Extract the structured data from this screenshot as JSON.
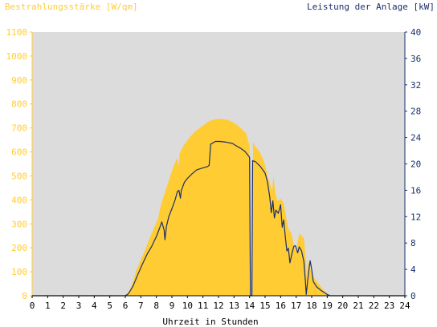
{
  "chart_data": {
    "type": "area+line",
    "left_axis_label": "Bestrahlungsstärke [W/qm]",
    "right_axis_label": "Leistung der Anlage [kW]",
    "xlabel": "Uhrzeit in Stunden",
    "x_ticks": [
      "0",
      "1",
      "2",
      "3",
      "4",
      "5",
      "6",
      "7",
      "8",
      "9",
      "10",
      "11",
      "12",
      "13",
      "14",
      "15",
      "16",
      "17",
      "18",
      "19",
      "20",
      "21",
      "22",
      "23",
      "24"
    ],
    "y_left_ticks": [
      "0",
      "100",
      "200",
      "300",
      "400",
      "500",
      "600",
      "700",
      "800",
      "900",
      "1000",
      "1100"
    ],
    "y_right_ticks": [
      "0",
      "4",
      "8",
      "12",
      "16",
      "20",
      "24",
      "28",
      "32",
      "36",
      "40"
    ],
    "xlim": [
      0,
      24
    ],
    "ylim_left": [
      0,
      1100
    ],
    "ylim_right": [
      0,
      40
    ],
    "grid": false,
    "colors": {
      "plot_background": "#dcdcdc",
      "irradiance_fill": "#ffcc33",
      "power_line": "#1a2f6b",
      "left_axis_text": "#ffcc33",
      "right_axis_text": "#1a2f6b",
      "axis_text": "#000000"
    },
    "series": [
      {
        "key": "irradiance",
        "axis": "left",
        "style": "area",
        "points": [
          [
            0,
            0
          ],
          [
            5.9,
            0
          ],
          [
            6.1,
            8
          ],
          [
            6.3,
            25
          ],
          [
            6.5,
            60
          ],
          [
            6.7,
            105
          ],
          [
            7.0,
            150
          ],
          [
            7.3,
            195
          ],
          [
            7.6,
            245
          ],
          [
            7.9,
            290
          ],
          [
            8.1,
            320
          ],
          [
            8.3,
            380
          ],
          [
            8.5,
            420
          ],
          [
            8.7,
            460
          ],
          [
            8.9,
            500
          ],
          [
            9.0,
            520
          ],
          [
            9.2,
            555
          ],
          [
            9.35,
            575
          ],
          [
            9.45,
            540
          ],
          [
            9.5,
            595
          ],
          [
            9.7,
            620
          ],
          [
            9.9,
            640
          ],
          [
            10.2,
            665
          ],
          [
            10.5,
            685
          ],
          [
            10.8,
            700
          ],
          [
            11.1,
            715
          ],
          [
            11.4,
            728
          ],
          [
            11.7,
            735
          ],
          [
            12.0,
            738
          ],
          [
            12.3,
            737
          ],
          [
            12.6,
            733
          ],
          [
            12.9,
            725
          ],
          [
            13.2,
            712
          ],
          [
            13.5,
            695
          ],
          [
            13.8,
            675
          ],
          [
            14.0,
            625
          ],
          [
            14.04,
            0
          ],
          [
            14.2,
            0
          ],
          [
            14.22,
            640
          ],
          [
            14.4,
            620
          ],
          [
            14.6,
            605
          ],
          [
            14.8,
            580
          ],
          [
            15.0,
            545
          ],
          [
            15.2,
            490
          ],
          [
            15.3,
            470
          ],
          [
            15.45,
            440
          ],
          [
            15.55,
            500
          ],
          [
            15.65,
            430
          ],
          [
            15.8,
            395
          ],
          [
            16.0,
            405
          ],
          [
            16.2,
            385
          ],
          [
            16.35,
            330
          ],
          [
            16.5,
            280
          ],
          [
            16.7,
            260
          ],
          [
            16.85,
            205
          ],
          [
            17.0,
            185
          ],
          [
            17.2,
            260
          ],
          [
            17.5,
            240
          ],
          [
            17.65,
            130
          ],
          [
            17.7,
            50
          ],
          [
            17.75,
            150
          ],
          [
            17.85,
            120
          ],
          [
            18.0,
            95
          ],
          [
            18.2,
            70
          ],
          [
            18.5,
            45
          ],
          [
            18.8,
            20
          ],
          [
            19.0,
            8
          ],
          [
            19.2,
            0
          ],
          [
            24,
            0
          ]
        ]
      },
      {
        "key": "power",
        "axis": "right",
        "style": "line",
        "points": [
          [
            0,
            0
          ],
          [
            6.0,
            0
          ],
          [
            6.2,
            0.3
          ],
          [
            6.5,
            1.5
          ],
          [
            6.8,
            3.2
          ],
          [
            7.1,
            4.8
          ],
          [
            7.4,
            6.3
          ],
          [
            7.7,
            7.5
          ],
          [
            8.0,
            9.0
          ],
          [
            8.2,
            10.2
          ],
          [
            8.35,
            11.2
          ],
          [
            8.5,
            10.0
          ],
          [
            8.55,
            8.5
          ],
          [
            8.65,
            10.5
          ],
          [
            8.8,
            12.0
          ],
          [
            9.0,
            13.2
          ],
          [
            9.2,
            14.5
          ],
          [
            9.35,
            15.8
          ],
          [
            9.45,
            16.0
          ],
          [
            9.55,
            14.8
          ],
          [
            9.6,
            15.9
          ],
          [
            9.8,
            17.2
          ],
          [
            10.0,
            17.8
          ],
          [
            10.3,
            18.5
          ],
          [
            10.6,
            19.1
          ],
          [
            11.0,
            19.4
          ],
          [
            11.3,
            19.6
          ],
          [
            11.4,
            19.8
          ],
          [
            11.5,
            23.0
          ],
          [
            11.8,
            23.4
          ],
          [
            12.1,
            23.4
          ],
          [
            12.5,
            23.3
          ],
          [
            12.9,
            23.1
          ],
          [
            13.1,
            22.8
          ],
          [
            13.4,
            22.4
          ],
          [
            13.7,
            21.9
          ],
          [
            14.0,
            21.0
          ],
          [
            14.03,
            10.0
          ],
          [
            14.06,
            0
          ],
          [
            14.15,
            0
          ],
          [
            14.2,
            20.5
          ],
          [
            14.4,
            20.3
          ],
          [
            14.7,
            19.6
          ],
          [
            15.0,
            18.6
          ],
          [
            15.15,
            17.3
          ],
          [
            15.3,
            15.0
          ],
          [
            15.4,
            12.6
          ],
          [
            15.5,
            14.4
          ],
          [
            15.6,
            11.8
          ],
          [
            15.7,
            13.0
          ],
          [
            15.85,
            12.5
          ],
          [
            16.0,
            13.8
          ],
          [
            16.1,
            10.4
          ],
          [
            16.2,
            11.5
          ],
          [
            16.3,
            9.0
          ],
          [
            16.4,
            6.8
          ],
          [
            16.5,
            7.2
          ],
          [
            16.6,
            5.0
          ],
          [
            16.75,
            6.6
          ],
          [
            16.85,
            7.5
          ],
          [
            16.95,
            7.6
          ],
          [
            17.1,
            6.5
          ],
          [
            17.2,
            7.4
          ],
          [
            17.35,
            6.8
          ],
          [
            17.5,
            5.2
          ],
          [
            17.6,
            2.0
          ],
          [
            17.65,
            0.2
          ],
          [
            17.8,
            3.5
          ],
          [
            17.9,
            5.3
          ],
          [
            18.0,
            4.0
          ],
          [
            18.1,
            2.2
          ],
          [
            18.3,
            1.4
          ],
          [
            18.6,
            0.8
          ],
          [
            18.8,
            0.5
          ],
          [
            19.0,
            0.2
          ],
          [
            19.2,
            0
          ],
          [
            24,
            0
          ]
        ]
      }
    ]
  }
}
